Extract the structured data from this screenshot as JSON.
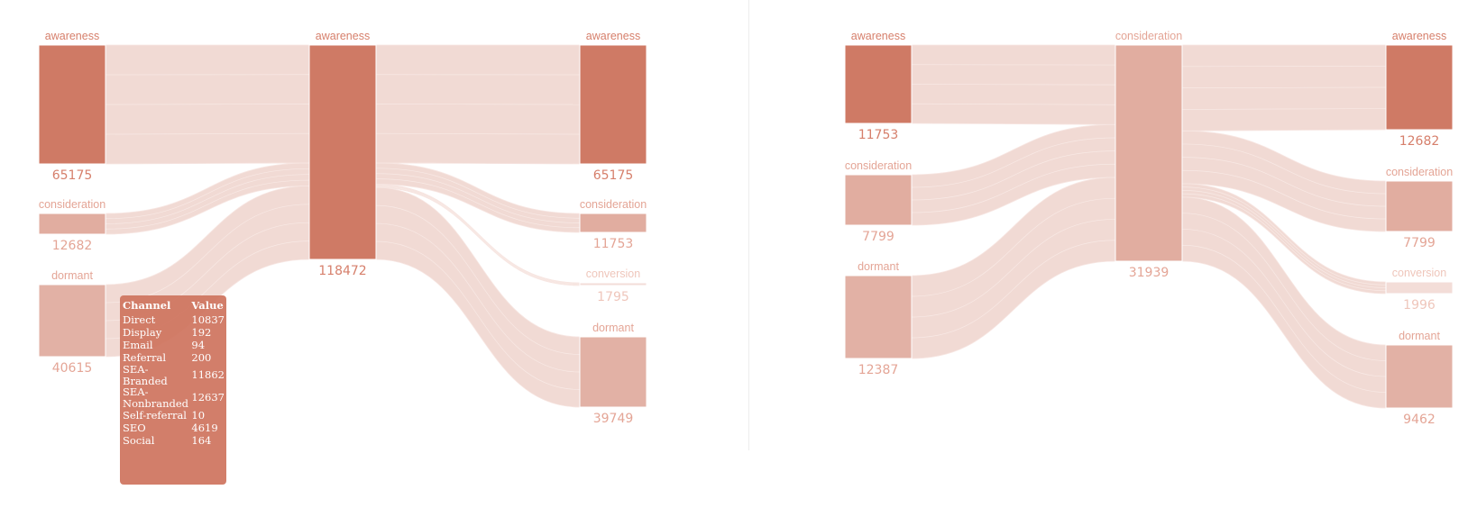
{
  "colors": {
    "awareness": "#cf7a65",
    "consideration": "#e1ada0",
    "dormant": "#e2b1a5",
    "conversion": "#f3ddd8",
    "link": "#efd3cc",
    "label_strong": "#d67f6b",
    "label_mid": "#e4a596",
    "label_light": "#efc6bb"
  },
  "chart_data": [
    {
      "type": "sankey",
      "stages": 3,
      "nodes": [
        {
          "id": "L0",
          "stage": 0,
          "label": "awareness",
          "value": 65175
        },
        {
          "id": "L1",
          "stage": 0,
          "label": "consideration",
          "value": 12682
        },
        {
          "id": "L2",
          "stage": 0,
          "label": "dormant",
          "value": 40615
        },
        {
          "id": "M0",
          "stage": 1,
          "label": "awareness",
          "value": 118472
        },
        {
          "id": "R0",
          "stage": 2,
          "label": "awareness",
          "value": 65175
        },
        {
          "id": "R1",
          "stage": 2,
          "label": "consideration",
          "value": 11753
        },
        {
          "id": "R2",
          "stage": 2,
          "label": "conversion",
          "value": 1795
        },
        {
          "id": "R3",
          "stage": 2,
          "label": "dormant",
          "value": 39749
        }
      ],
      "links": [
        {
          "source": "L0",
          "target": "M0",
          "value": 65175
        },
        {
          "source": "L1",
          "target": "M0",
          "value": 12682
        },
        {
          "source": "L2",
          "target": "M0",
          "value": 40615
        },
        {
          "source": "M0",
          "target": "R0",
          "value": 65175
        },
        {
          "source": "M0",
          "target": "R1",
          "value": 11753
        },
        {
          "source": "M0",
          "target": "R2",
          "value": 1795
        },
        {
          "source": "M0",
          "target": "R3",
          "value": 39749
        }
      ],
      "tooltip": {
        "headers": [
          "Channel",
          "Value"
        ],
        "rows": [
          [
            "Direct",
            "10837"
          ],
          [
            "Display",
            "192"
          ],
          [
            "Email",
            "94"
          ],
          [
            "Referral",
            "200"
          ],
          [
            "SEA-Branded",
            "11862"
          ],
          [
            "SEA-Nonbranded",
            "12637"
          ],
          [
            "Self-referral",
            "10"
          ],
          [
            "SEO",
            "4619"
          ],
          [
            "Social",
            "164"
          ]
        ]
      }
    },
    {
      "type": "sankey",
      "stages": 3,
      "nodes": [
        {
          "id": "L0",
          "stage": 0,
          "label": "awareness",
          "value": 11753
        },
        {
          "id": "L1",
          "stage": 0,
          "label": "consideration",
          "value": 7799
        },
        {
          "id": "L2",
          "stage": 0,
          "label": "dormant",
          "value": 12387
        },
        {
          "id": "M0",
          "stage": 1,
          "label": "consideration",
          "value": 31939
        },
        {
          "id": "R0",
          "stage": 2,
          "label": "awareness",
          "value": 12682
        },
        {
          "id": "R1",
          "stage": 2,
          "label": "consideration",
          "value": 7799
        },
        {
          "id": "R2",
          "stage": 2,
          "label": "conversion",
          "value": 1996
        },
        {
          "id": "R3",
          "stage": 2,
          "label": "dormant",
          "value": 9462
        }
      ],
      "links": [
        {
          "source": "L0",
          "target": "M0",
          "value": 11753
        },
        {
          "source": "L1",
          "target": "M0",
          "value": 7799
        },
        {
          "source": "L2",
          "target": "M0",
          "value": 12387
        },
        {
          "source": "M0",
          "target": "R0",
          "value": 12682
        },
        {
          "source": "M0",
          "target": "R1",
          "value": 7799
        },
        {
          "source": "M0",
          "target": "R2",
          "value": 1996
        },
        {
          "source": "M0",
          "target": "R3",
          "value": 9462
        }
      ]
    }
  ]
}
